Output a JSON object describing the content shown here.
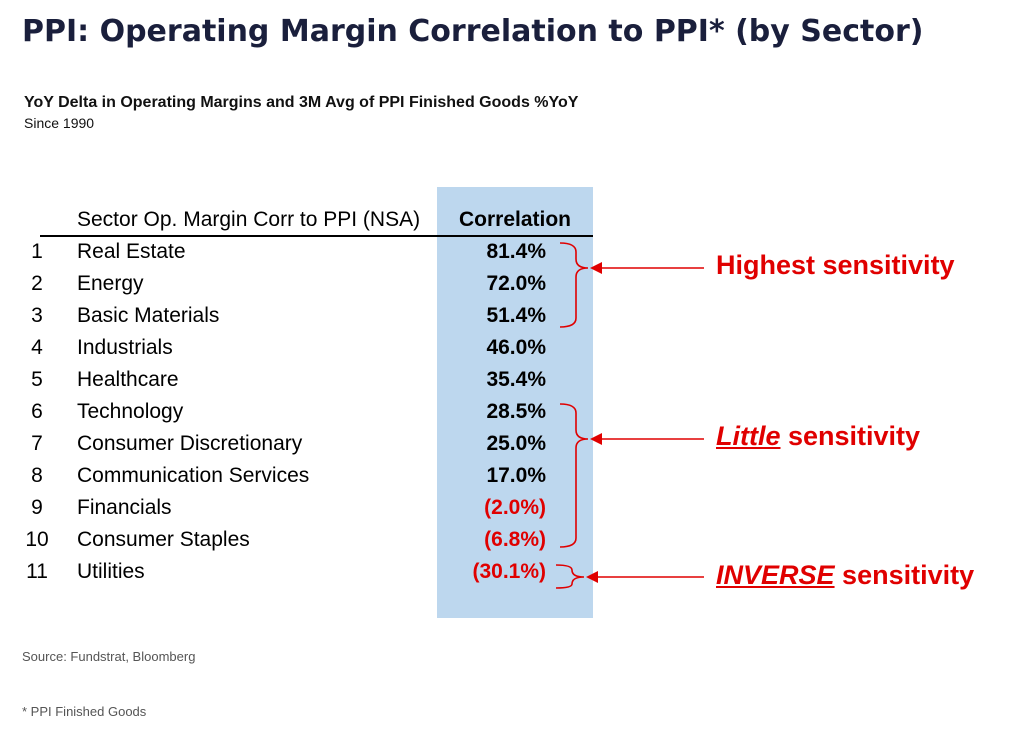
{
  "title": "PPI: Operating Margin Correlation to PPI* (by Sector)",
  "subtitle": "YoY Delta in Operating Margins and 3M Avg of PPI Finished Goods %YoY",
  "since": "Since 1990",
  "table": {
    "header_label": "Sector Op. Margin Corr to PPI (NSA)",
    "header_value": "Correlation"
  },
  "chart_data": {
    "type": "table",
    "columns": [
      "Sector Op. Margin Corr to PPI (NSA)",
      "Correlation"
    ],
    "rows": [
      {
        "rank": "1",
        "sector": "Real Estate",
        "label": "81.4%",
        "value": 81.4
      },
      {
        "rank": "2",
        "sector": "Energy",
        "label": "72.0%",
        "value": 72.0
      },
      {
        "rank": "3",
        "sector": "Basic Materials",
        "label": "51.4%",
        "value": 51.4
      },
      {
        "rank": "4",
        "sector": "Industrials",
        "label": "46.0%",
        "value": 46.0
      },
      {
        "rank": "5",
        "sector": "Healthcare",
        "label": "35.4%",
        "value": 35.4
      },
      {
        "rank": "6",
        "sector": "Technology",
        "label": "28.5%",
        "value": 28.5
      },
      {
        "rank": "7",
        "sector": "Consumer Discretionary",
        "label": "25.0%",
        "value": 25.0
      },
      {
        "rank": "8",
        "sector": "Communication Services",
        "label": "17.0%",
        "value": 17.0
      },
      {
        "rank": "9",
        "sector": "Financials",
        "label": "(2.0%)",
        "value": -2.0
      },
      {
        "rank": "10",
        "sector": "Consumer Staples",
        "label": "(6.8%)",
        "value": -6.8
      },
      {
        "rank": "11",
        "sector": "Utilities",
        "label": "(30.1%)",
        "value": -30.1
      }
    ]
  },
  "annotations": {
    "highest": "Highest sensitivity",
    "little_em": "Little",
    "little_rest": " sensitivity",
    "inverse_em": "INVERSE",
    "inverse_rest": " sensitivity"
  },
  "colors": {
    "accent_red": "#e00000",
    "highlight_column": "#bdd7ee",
    "title": "#1a1f3c"
  },
  "source": "Source: Fundstrat, Bloomberg",
  "footnote": "* PPI Finished Goods"
}
